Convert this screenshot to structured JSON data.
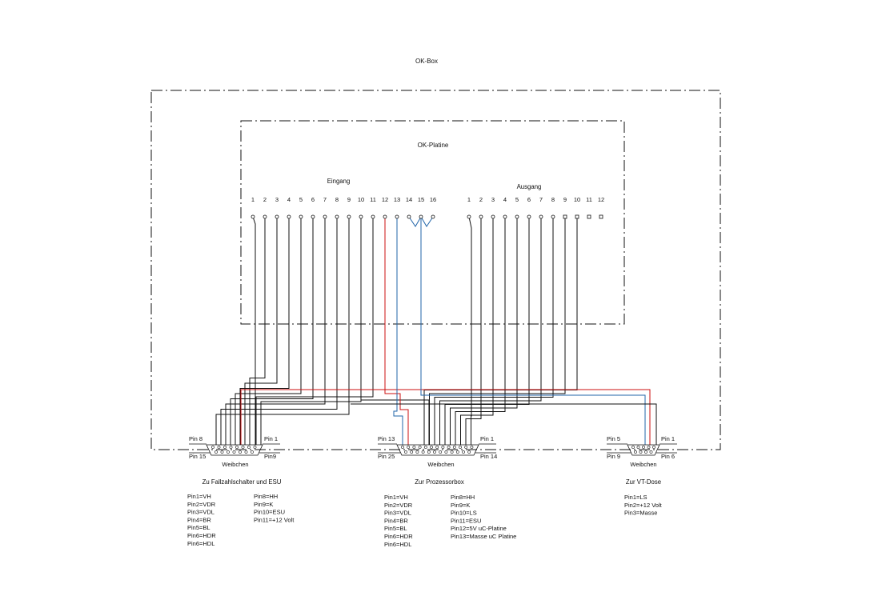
{
  "box_title": "OK-Box",
  "board_title": "OK-Platine",
  "input_label": "Eingang",
  "output_label": "Ausgang",
  "input_pins": [
    "1",
    "2",
    "3",
    "4",
    "5",
    "6",
    "7",
    "8",
    "9",
    "10",
    "11",
    "12",
    "13",
    "14",
    "15",
    "16"
  ],
  "output_pins": [
    "1",
    "2",
    "3",
    "4",
    "5",
    "6",
    "7",
    "8",
    "9",
    "10",
    "11",
    "12"
  ],
  "wire_colors": {
    "black": "#111111",
    "red": "#cc1111",
    "blue": "#2266aa"
  },
  "connectors": {
    "left": {
      "pin_tl": "Pin 8",
      "pin_tr": "Pin 1",
      "pin_bl": "Pin 15",
      "pin_br": "Pin9",
      "type": "Weibchen",
      "purpose": "Zu Fallzahlschalter und ESU",
      "legend_col1": [
        "Pin1=VH",
        "Pin2=VDR",
        "Pin3=VDL",
        "Pin4=BR",
        "Pin5=BL",
        "Pin6=HDR",
        "Pin6=HDL"
      ],
      "legend_col2": [
        "Pin8=HH",
        "Pin9=K",
        "Pin10=ESU",
        "Pin11=+12 Volt"
      ]
    },
    "middle": {
      "pin_tl": "Pin 13",
      "pin_tr": "Pin 1",
      "pin_bl": "Pin 25",
      "pin_br": "Pin 14",
      "type": "Weibchen",
      "purpose": "Zur Prozessorbox",
      "legend_col1": [
        "Pin1=VH",
        "Pin2=VDR",
        "Pin3=VDL",
        "Pin4=BR",
        "Pin5=BL",
        "Pin6=HDR",
        "Pin6=HDL"
      ],
      "legend_col2": [
        "Pin8=HH",
        "Pin9=K",
        "Pin10=LS",
        "Pin11=ESU",
        "Pin12=5V uC-Platine",
        "Pin13=Masse uC Platine"
      ]
    },
    "right": {
      "pin_tl": "Pin 5",
      "pin_tr": "Pin 1",
      "pin_bl": "Pin 9",
      "pin_br": "Pin 6",
      "type": "Weibchen",
      "purpose": "Zur VT-Dose",
      "legend_col1": [
        "Pin1=LS",
        "Pin2=+12 Volt",
        "Pin3=Masse"
      ]
    }
  }
}
